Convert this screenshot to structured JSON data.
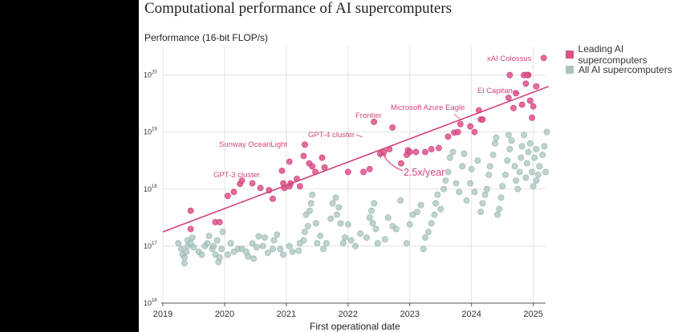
{
  "chart_data": {
    "type": "scatter",
    "title": "Computational performance of AI supercomputers",
    "ylabel": "Performance (16-bit FLOP/s)",
    "xlabel": "First operational date",
    "y_scale": "log",
    "xlim": [
      2019.0,
      2025.3
    ],
    "ylim_exp": [
      16,
      20.5
    ],
    "x_ticks": [
      "2019",
      "2020",
      "2021",
      "2022",
      "2023",
      "2024",
      "2025"
    ],
    "y_ticks": [
      {
        "base": "10",
        "exp": "16",
        "value": 16
      },
      {
        "base": "10",
        "exp": "17",
        "value": 17
      },
      {
        "base": "10",
        "exp": "18",
        "value": 18
      },
      {
        "base": "10",
        "exp": "19",
        "value": 19
      },
      {
        "base": "10",
        "exp": "20",
        "value": 20
      }
    ],
    "colors": {
      "leading": "#e0508c",
      "all": "#a9c4c0",
      "trend": "#d4457f",
      "grid": "#e3e3e3"
    },
    "legend": [
      {
        "label": "Leading AI supercomputers",
        "color": "#e0508c"
      },
      {
        "label": "All AI supercomputers",
        "color": "#a9c4c0"
      }
    ],
    "trend": {
      "label": "2.5x/year",
      "x": [
        2019.0,
        2025.25
      ],
      "y_log": [
        17.25,
        19.8
      ]
    },
    "annotations": [
      {
        "text": "xAI Colossus",
        "x": 2025.17,
        "y_log": 20.3
      },
      {
        "text": "El Capitan",
        "x": 2024.85,
        "y_log": 19.7
      },
      {
        "text": "Microsoft Azure Eagle",
        "x": 2023.87,
        "y_log": 19.08
      },
      {
        "text": "Frontier",
        "x": 2022.37,
        "y_log": 19.27
      },
      {
        "text": "GPT-4 cluster",
        "x": 2022.33,
        "y_log": 18.95
      },
      {
        "text": "Sunway OceanLight",
        "x": 2021.17,
        "y_log": 18.8
      },
      {
        "text": "GPT-3 cluster",
        "x": 2020.33,
        "y_log": 18.17
      }
    ],
    "series": [
      {
        "name": "Leading AI supercomputers",
        "points": [
          [
            2019.45,
            17.62
          ],
          [
            2019.45,
            17.3
          ],
          [
            2019.85,
            17.42
          ],
          [
            2019.92,
            17.42
          ],
          [
            2020.05,
            17.88
          ],
          [
            2020.15,
            17.95
          ],
          [
            2020.25,
            18.09
          ],
          [
            2020.28,
            18.15
          ],
          [
            2020.45,
            18.1
          ],
          [
            2020.58,
            18.02
          ],
          [
            2020.72,
            17.98
          ],
          [
            2020.78,
            17.83
          ],
          [
            2020.95,
            18.1
          ],
          [
            2020.97,
            18.02
          ],
          [
            2021.05,
            18.05
          ],
          [
            2021.07,
            18.1
          ],
          [
            2021.17,
            18.18
          ],
          [
            2021.22,
            18.05
          ],
          [
            2021.28,
            18.58
          ],
          [
            2021.3,
            18.78
          ],
          [
            2021.42,
            18.4
          ],
          [
            2021.47,
            18.3
          ],
          [
            2021.62,
            18.38
          ],
          [
            2022.0,
            18.3
          ],
          [
            2022.25,
            18.3
          ],
          [
            2022.35,
            18.35
          ],
          [
            2022.42,
            19.18
          ],
          [
            2022.52,
            18.62
          ],
          [
            2022.58,
            18.65
          ],
          [
            2022.67,
            18.7
          ],
          [
            2022.72,
            19.08
          ],
          [
            2022.86,
            18.45
          ],
          [
            2022.95,
            18.6
          ],
          [
            2022.97,
            18.68
          ],
          [
            2023.0,
            18.65
          ],
          [
            2023.1,
            18.65
          ],
          [
            2023.25,
            18.65
          ],
          [
            2023.35,
            18.7
          ],
          [
            2023.47,
            18.72
          ],
          [
            2023.62,
            18.92
          ],
          [
            2023.72,
            18.99
          ],
          [
            2023.78,
            19.0
          ],
          [
            2023.82,
            19.14
          ],
          [
            2023.98,
            19.1
          ],
          [
            2024.05,
            19.0
          ],
          [
            2024.12,
            19.38
          ],
          [
            2024.15,
            19.22
          ],
          [
            2024.18,
            19.22
          ],
          [
            2024.6,
            19.6
          ],
          [
            2024.68,
            19.42
          ],
          [
            2024.72,
            19.68
          ],
          [
            2024.82,
            19.48
          ],
          [
            2024.85,
            20.0
          ],
          [
            2024.88,
            19.85
          ],
          [
            2024.92,
            20.0
          ],
          [
            2025.17,
            20.3
          ],
          [
            2024.9,
            20.0
          ],
          [
            2024.62,
            20.0
          ],
          [
            2025.0,
            19.45
          ],
          [
            2025.05,
            19.8
          ],
          [
            2024.95,
            19.55
          ],
          [
            2024.98,
            19.25
          ],
          [
            2021.37,
            18.45
          ],
          [
            2020.93,
            18.32
          ],
          [
            2021.05,
            18.48
          ],
          [
            2021.58,
            18.55
          ]
        ]
      },
      {
        "name": "All AI supercomputers",
        "points": [
          [
            2019.25,
            17.05
          ],
          [
            2019.3,
            16.95
          ],
          [
            2019.32,
            16.85
          ],
          [
            2019.35,
            16.8
          ],
          [
            2019.35,
            16.7
          ],
          [
            2019.38,
            16.9
          ],
          [
            2019.4,
            17.0
          ],
          [
            2019.4,
            17.1
          ],
          [
            2019.45,
            17.05
          ],
          [
            2019.48,
            17.15
          ],
          [
            2019.5,
            16.98
          ],
          [
            2019.58,
            16.9
          ],
          [
            2019.63,
            16.85
          ],
          [
            2019.68,
            17.0
          ],
          [
            2019.72,
            17.05
          ],
          [
            2019.75,
            17.18
          ],
          [
            2019.8,
            16.95
          ],
          [
            2019.82,
            17.0
          ],
          [
            2019.85,
            16.85
          ],
          [
            2019.88,
            17.1
          ],
          [
            2019.9,
            16.72
          ],
          [
            2019.92,
            16.8
          ],
          [
            2019.95,
            16.95
          ],
          [
            2019.97,
            17.25
          ],
          [
            2020.05,
            16.85
          ],
          [
            2020.1,
            17.05
          ],
          [
            2020.15,
            16.9
          ],
          [
            2020.22,
            16.95
          ],
          [
            2020.28,
            16.95
          ],
          [
            2020.35,
            16.9
          ],
          [
            2020.38,
            16.82
          ],
          [
            2020.45,
            17.05
          ],
          [
            2020.47,
            16.78
          ],
          [
            2020.52,
            16.98
          ],
          [
            2020.55,
            17.17
          ],
          [
            2020.62,
            17.0
          ],
          [
            2020.65,
            17.15
          ],
          [
            2020.7,
            16.88
          ],
          [
            2020.78,
            16.95
          ],
          [
            2020.8,
            17.1
          ],
          [
            2020.85,
            17.2
          ],
          [
            2020.9,
            16.95
          ],
          [
            2020.95,
            16.85
          ],
          [
            2021.05,
            17.0
          ],
          [
            2021.1,
            16.9
          ],
          [
            2021.2,
            16.92
          ],
          [
            2021.22,
            17.05
          ],
          [
            2021.28,
            17.1
          ],
          [
            2021.3,
            17.25
          ],
          [
            2021.32,
            17.55
          ],
          [
            2021.35,
            17.35
          ],
          [
            2021.38,
            17.62
          ],
          [
            2021.4,
            17.75
          ],
          [
            2021.42,
            17.9
          ],
          [
            2021.48,
            17.4
          ],
          [
            2021.5,
            17.05
          ],
          [
            2021.55,
            17.18
          ],
          [
            2021.6,
            16.95
          ],
          [
            2021.65,
            17.05
          ],
          [
            2021.72,
            17.48
          ],
          [
            2021.75,
            17.75
          ],
          [
            2021.8,
            17.85
          ],
          [
            2021.82,
            17.55
          ],
          [
            2021.85,
            17.68
          ],
          [
            2021.88,
            17.4
          ],
          [
            2021.92,
            17.05
          ],
          [
            2021.95,
            17.15
          ],
          [
            2022.0,
            17.38
          ],
          [
            2022.05,
            17.1
          ],
          [
            2022.12,
            17.0
          ],
          [
            2022.2,
            17.22
          ],
          [
            2022.3,
            17.15
          ],
          [
            2022.35,
            17.5
          ],
          [
            2022.38,
            17.62
          ],
          [
            2022.4,
            17.4
          ],
          [
            2022.42,
            17.75
          ],
          [
            2022.45,
            17.3
          ],
          [
            2022.48,
            17.05
          ],
          [
            2022.6,
            17.12
          ],
          [
            2022.65,
            17.5
          ],
          [
            2022.72,
            17.35
          ],
          [
            2022.78,
            17.3
          ],
          [
            2022.85,
            17.8
          ],
          [
            2022.95,
            17.05
          ],
          [
            2023.0,
            17.38
          ],
          [
            2023.05,
            17.55
          ],
          [
            2023.12,
            17.6
          ],
          [
            2023.18,
            17.72
          ],
          [
            2023.22,
            16.95
          ],
          [
            2023.25,
            17.15
          ],
          [
            2023.3,
            17.25
          ],
          [
            2023.35,
            17.4
          ],
          [
            2023.4,
            17.55
          ],
          [
            2023.42,
            17.75
          ],
          [
            2023.45,
            17.9
          ],
          [
            2023.5,
            17.65
          ],
          [
            2023.55,
            18.0
          ],
          [
            2023.58,
            18.15
          ],
          [
            2023.62,
            18.3
          ],
          [
            2023.65,
            18.55
          ],
          [
            2023.7,
            18.65
          ],
          [
            2023.75,
            18.1
          ],
          [
            2023.8,
            17.95
          ],
          [
            2023.85,
            18.4
          ],
          [
            2023.88,
            18.62
          ],
          [
            2023.92,
            17.8
          ],
          [
            2023.98,
            18.1
          ],
          [
            2024.0,
            18.35
          ],
          [
            2024.05,
            17.95
          ],
          [
            2024.1,
            18.5
          ],
          [
            2024.15,
            17.6
          ],
          [
            2024.18,
            17.75
          ],
          [
            2024.22,
            17.9
          ],
          [
            2024.25,
            18.0
          ],
          [
            2024.28,
            18.25
          ],
          [
            2024.3,
            18.4
          ],
          [
            2024.35,
            18.6
          ],
          [
            2024.38,
            18.8
          ],
          [
            2024.4,
            18.9
          ],
          [
            2024.45,
            17.65
          ],
          [
            2024.48,
            17.85
          ],
          [
            2024.5,
            18.05
          ],
          [
            2024.55,
            18.25
          ],
          [
            2024.58,
            18.5
          ],
          [
            2024.62,
            18.7
          ],
          [
            2024.65,
            18.85
          ],
          [
            2024.7,
            18.4
          ],
          [
            2024.72,
            18.15
          ],
          [
            2024.75,
            18.0
          ],
          [
            2024.78,
            18.3
          ],
          [
            2024.8,
            18.55
          ],
          [
            2024.82,
            18.75
          ],
          [
            2024.85,
            18.95
          ],
          [
            2024.88,
            18.2
          ],
          [
            2024.9,
            18.45
          ],
          [
            2024.92,
            18.65
          ],
          [
            2024.95,
            18.8
          ],
          [
            2024.98,
            18.3
          ],
          [
            2025.0,
            18.05
          ],
          [
            2025.02,
            18.55
          ],
          [
            2025.05,
            18.7
          ],
          [
            2025.08,
            18.25
          ],
          [
            2025.1,
            18.4
          ],
          [
            2025.15,
            18.6
          ],
          [
            2025.18,
            18.75
          ],
          [
            2025.2,
            18.3
          ],
          [
            2025.22,
            19.0
          ],
          [
            2025.05,
            18.15
          ],
          [
            2024.6,
            18.95
          ],
          [
            2024.42,
            17.55
          ]
        ]
      }
    ]
  }
}
